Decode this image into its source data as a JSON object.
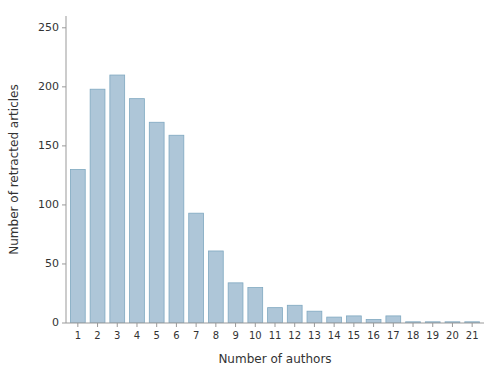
{
  "chart_data": {
    "type": "bar",
    "x": [
      1,
      2,
      3,
      4,
      5,
      6,
      7,
      8,
      9,
      10,
      11,
      12,
      13,
      14,
      15,
      16,
      17,
      18,
      19,
      20,
      21
    ],
    "values": [
      130,
      198,
      210,
      190,
      170,
      159,
      93,
      61,
      34,
      30,
      13,
      15,
      10,
      5,
      6,
      3,
      6,
      1,
      1,
      1,
      1
    ],
    "color": "#aec6d8",
    "xlabel": "Number of authors",
    "ylabel": "Number of retracted articles",
    "xlim": [
      0.4,
      21.6
    ],
    "xticks": [
      1,
      2,
      3,
      4,
      5,
      6,
      7,
      8,
      9,
      10,
      11,
      12,
      13,
      14,
      15,
      16,
      17,
      18,
      19,
      20,
      21
    ],
    "ylim": [
      0,
      260
    ],
    "yticks": [
      0,
      50,
      100,
      150,
      200,
      250
    ],
    "grid": false
  }
}
